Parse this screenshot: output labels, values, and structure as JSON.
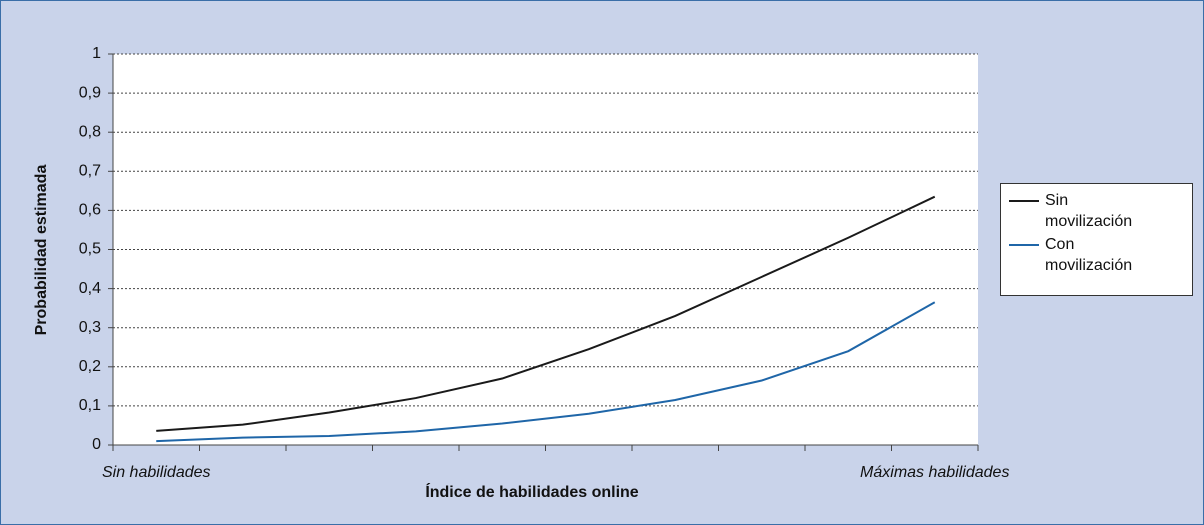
{
  "chart_data": {
    "type": "line",
    "y_label": "Probabilidad estimada",
    "x_label": "Índice de habilidades online",
    "categories": [
      "Sin habilidades",
      null,
      null,
      null,
      null,
      null,
      null,
      null,
      null,
      "Máximas habilidades"
    ],
    "series": [
      {
        "name": "Sin movilización",
        "color": "#1a1a1a",
        "values": [
          0.036,
          0.052,
          0.083,
          0.12,
          0.17,
          0.245,
          0.33,
          0.43,
          0.53,
          0.635
        ]
      },
      {
        "name": "Con movilización",
        "color": "#1f66a8",
        "values": [
          0.01,
          0.019,
          0.023,
          0.035,
          0.055,
          0.08,
          0.115,
          0.165,
          0.24,
          0.365
        ]
      }
    ],
    "ylim": [
      0,
      1
    ],
    "yticks": [
      0,
      {
        "value": 0.1,
        "label": "0,1"
      },
      {
        "value": 0.2,
        "label": "0,2"
      },
      {
        "value": 0.3,
        "label": "0,3"
      },
      {
        "value": 0.4,
        "label": "0,4"
      },
      {
        "value": 0.5,
        "label": "0,5"
      },
      {
        "value": 0.6,
        "label": "0,6"
      },
      {
        "value": 0.7,
        "label": "0,7"
      },
      {
        "value": 0.8,
        "label": "0,8"
      },
      {
        "value": 0.9,
        "label": "0,9"
      },
      1
    ],
    "grid": true,
    "legend": "right"
  }
}
